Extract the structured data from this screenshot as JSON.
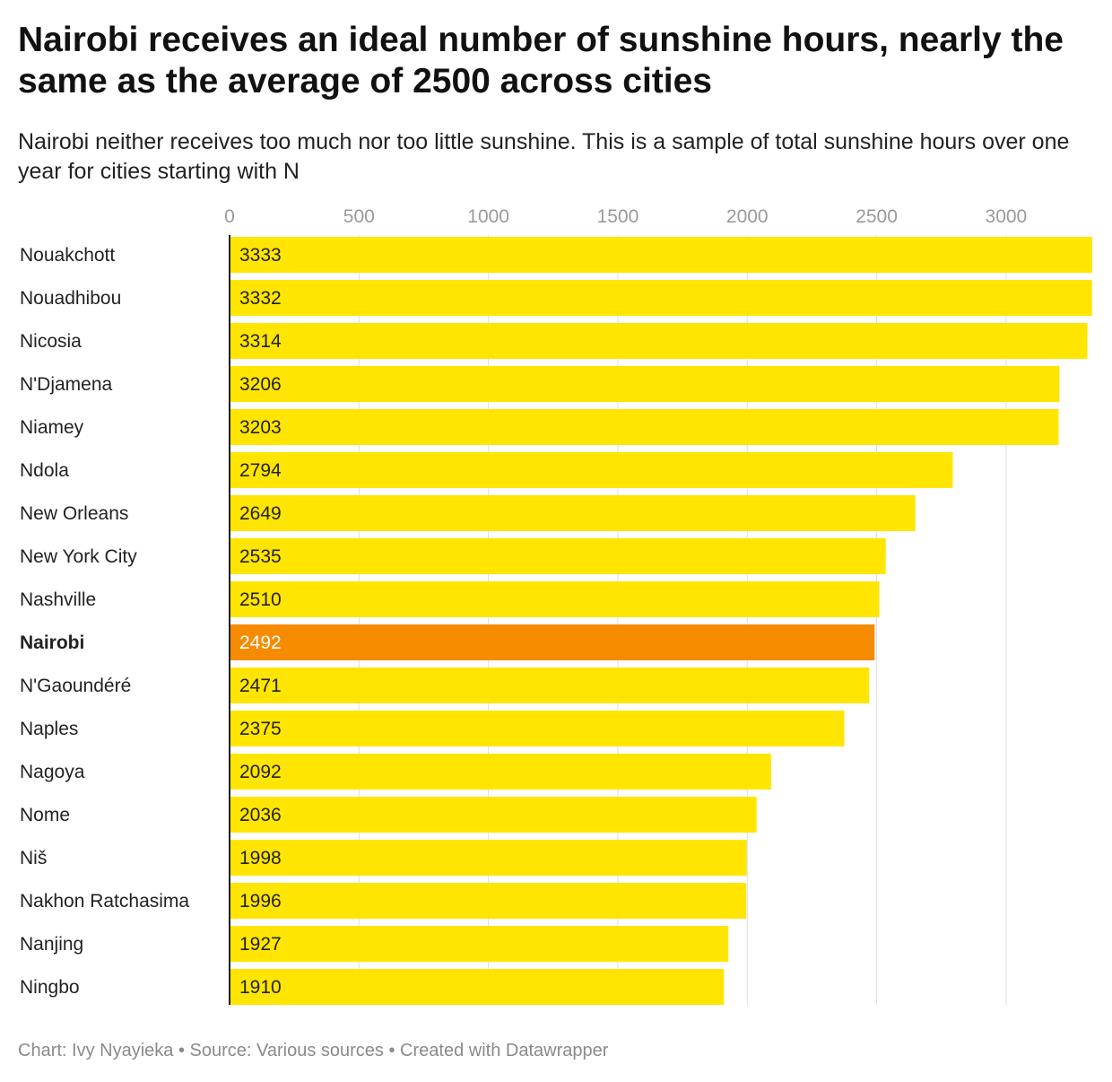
{
  "title": "Nairobi receives an ideal number of sunshine hours, nearly the same as the average of 2500 across cities",
  "subtitle": "Nairobi neither receives too much nor too little sunshine. This is a sample of total sunshine hours over one year for cities starting with N",
  "footer": {
    "chart_credit": "Chart: Ivy Nyayieka",
    "separator": " • ",
    "source": "Source: Various sources",
    "created_with": "Created with Datawrapper"
  },
  "colors": {
    "bar": "#FFE500",
    "highlight": "#F78B00",
    "grid": "#dedede",
    "axis": "#222222",
    "tick_label": "#9a9a9a"
  },
  "chart_data": {
    "type": "bar",
    "orientation": "horizontal",
    "categories": [
      "Nouakchott",
      "Nouadhibou",
      "Nicosia",
      "N'Djamena",
      "Niamey",
      "Ndola",
      "New Orleans",
      "New York City",
      "Nashville",
      "Nairobi",
      "N'Gaoundéré",
      "Naples",
      "Nagoya",
      "Nome",
      "Niš",
      "Nakhon Ratchasima",
      "Nanjing",
      "Ningbo"
    ],
    "values": [
      3333,
      3332,
      3314,
      3206,
      3203,
      2794,
      2649,
      2535,
      2510,
      2492,
      2471,
      2375,
      2092,
      2036,
      1998,
      1996,
      1927,
      1910
    ],
    "highlighted": "Nairobi",
    "x_ticks": [
      0,
      500,
      1000,
      1500,
      2000,
      2500,
      3000
    ],
    "xlim": [
      0,
      3333
    ],
    "grid": true,
    "xaxis_position": "top"
  }
}
